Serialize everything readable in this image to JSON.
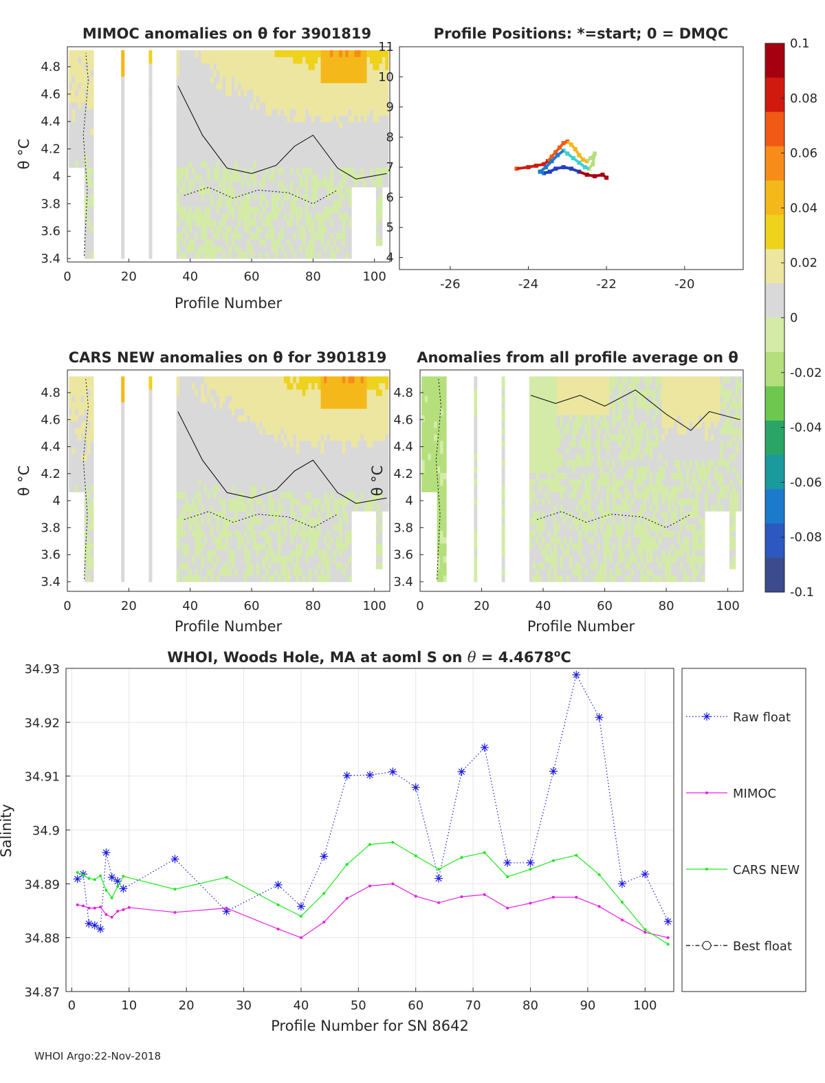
{
  "chart_data": [
    {
      "type": "heatmap",
      "id": "mimoc",
      "title": "MIMOC anomalies on θ  for 3901819",
      "xlabel": "Profile Number",
      "ylabel": "θ °C",
      "xlim": [
        0,
        105
      ],
      "ylim": [
        3.35,
        4.95
      ],
      "xticks": [
        "0",
        "20",
        "40",
        "60",
        "80",
        "100"
      ],
      "yticks": [
        "3.4",
        "3.6",
        "3.8",
        "4",
        "4.2",
        "4.4",
        "4.6",
        "4.8"
      ]
    },
    {
      "type": "scatter",
      "id": "positions",
      "title": "Profile Positions: *=start; 0 = DMQC",
      "xlim": [
        -27.3,
        -18.5
      ],
      "ylim": [
        3.6,
        11
      ],
      "xticks": [
        "-26",
        "-24",
        "-22",
        "-20"
      ],
      "yticks": [
        "4",
        "5",
        "6",
        "7",
        "8",
        "9",
        "10",
        "11"
      ],
      "track_lon": [
        -24.3,
        -24.0,
        -23.8,
        -23.6,
        -23.5,
        -23.4,
        -23.3,
        -23.2,
        -23.1,
        -23.0,
        -22.9,
        -22.8,
        -22.7,
        -22.6,
        -22.5,
        -22.4,
        -22.3,
        -22.35,
        -22.45,
        -22.55,
        -22.7,
        -22.85,
        -23.0,
        -23.1,
        -23.25,
        -23.4,
        -23.55,
        -23.7,
        -23.6,
        -23.45,
        -23.3,
        -23.1,
        -22.9,
        -22.7,
        -22.5,
        -22.3,
        -22.1,
        -22.0
      ],
      "track_lat": [
        6.95,
        7.0,
        7.05,
        7.1,
        7.2,
        7.35,
        7.5,
        7.65,
        7.8,
        7.85,
        7.75,
        7.6,
        7.4,
        7.25,
        7.2,
        7.3,
        7.45,
        7.1,
        6.95,
        7.0,
        7.15,
        7.3,
        7.45,
        7.55,
        7.4,
        7.2,
        7.0,
        6.85,
        6.8,
        6.85,
        6.95,
        7.0,
        6.95,
        6.85,
        6.75,
        6.7,
        6.75,
        6.65
      ]
    },
    {
      "type": "heatmap",
      "id": "cars",
      "title": "CARS NEW anomalies on θ for 3901819",
      "xlabel": "Profile Number",
      "ylabel": "θ °C",
      "xlim": [
        0,
        105
      ],
      "ylim": [
        3.35,
        4.95
      ],
      "xticks": [
        "0",
        "20",
        "40",
        "60",
        "80",
        "100"
      ],
      "yticks": [
        "3.4",
        "3.6",
        "3.8",
        "4",
        "4.2",
        "4.4",
        "4.6",
        "4.8"
      ]
    },
    {
      "type": "heatmap",
      "id": "avg",
      "title": "Anomalies from all profile average on θ",
      "xlabel": "Profile Number",
      "ylabel": "θ °C",
      "xlim": [
        0,
        105
      ],
      "ylim": [
        3.35,
        4.95
      ],
      "xticks": [
        "0",
        "20",
        "40",
        "60",
        "80",
        "100"
      ],
      "yticks": [
        "3.4",
        "3.6",
        "3.8",
        "4",
        "4.2",
        "4.4",
        "4.6",
        "4.8"
      ]
    },
    {
      "type": "colorbar",
      "range": [
        -0.1,
        0.1
      ],
      "ticks": [
        "0.1",
        "0.08",
        "0.06",
        "0.04",
        "0.02",
        "0",
        "-0.02",
        "-0.04",
        "-0.06",
        "-0.08",
        "-0.1"
      ],
      "colors": [
        "#a50010",
        "#d01a10",
        "#f05a14",
        "#f88c18",
        "#f4b81a",
        "#eed21c",
        "#ece6a0",
        "#d9d9d9",
        "#d4eba8",
        "#b4df7c",
        "#6ec850",
        "#2aa566",
        "#1a9a9c",
        "#1c7acc",
        "#2c58c0",
        "#3c4a8e"
      ]
    },
    {
      "type": "line",
      "id": "salinity",
      "title": "WHOI, Woods Hole, MA at aoml S on θ = 4.4678°C",
      "xlabel": "Profile Number for SN 8642",
      "ylabel": "Salinity",
      "xlim": [
        -1,
        105
      ],
      "ylim": [
        34.87,
        34.93
      ],
      "grid": true,
      "legend_position": "right-outside",
      "xticks": [
        "0",
        "10",
        "20",
        "30",
        "40",
        "50",
        "60",
        "70",
        "80",
        "90",
        "100"
      ],
      "yticks": [
        "34.93",
        "34.92",
        "34.91",
        "34.9",
        "34.89",
        "34.88",
        "34.87"
      ],
      "series": [
        {
          "name": "Raw float",
          "color": "#1a1adf",
          "x": [
            1,
            2,
            3,
            4,
            5,
            6,
            7,
            8,
            9,
            18,
            27,
            36,
            40,
            44,
            48,
            52,
            56,
            60,
            64,
            68,
            72,
            76,
            80,
            84,
            88,
            92,
            96,
            100,
            104
          ],
          "values": [
            34.8909,
            34.8918,
            34.8826,
            34.8823,
            34.8816,
            34.8958,
            34.8912,
            34.8905,
            34.8891,
            34.8946,
            34.8849,
            34.8898,
            34.8858,
            34.8951,
            34.9101,
            34.9102,
            34.9108,
            34.9079,
            34.891,
            34.9108,
            34.9153,
            34.8939,
            34.8939,
            34.9109,
            34.9288,
            34.9209,
            34.89,
            34.8918,
            34.883
          ]
        },
        {
          "name": "MIMOC",
          "color": "#e81ee8",
          "x": [
            1,
            2,
            3,
            4,
            5,
            6,
            7,
            8,
            9,
            10,
            18,
            27,
            36,
            40,
            44,
            48,
            52,
            56,
            60,
            64,
            68,
            72,
            76,
            80,
            84,
            88,
            92,
            96,
            100,
            104
          ],
          "values": [
            34.8861,
            34.8859,
            34.8855,
            34.8855,
            34.8857,
            34.8843,
            34.8838,
            34.8849,
            34.8852,
            34.8856,
            34.8847,
            34.8855,
            34.8816,
            34.88,
            34.8829,
            34.8873,
            34.8896,
            34.89,
            34.8877,
            34.8865,
            34.8876,
            34.888,
            34.8855,
            34.8864,
            34.8875,
            34.8875,
            34.8858,
            34.8833,
            34.881,
            34.88
          ]
        },
        {
          "name": "CARS NEW",
          "color": "#1ee81e",
          "x": [
            1,
            2,
            3,
            4,
            5,
            6,
            7,
            8,
            9,
            18,
            27,
            36,
            40,
            44,
            48,
            52,
            56,
            60,
            64,
            68,
            72,
            76,
            80,
            84,
            88,
            92,
            96,
            100,
            104
          ],
          "values": [
            34.8921,
            34.8916,
            34.891,
            34.8908,
            34.8915,
            34.8888,
            34.8874,
            34.8895,
            34.8914,
            34.889,
            34.8912,
            34.8861,
            34.884,
            34.8882,
            34.8936,
            34.8973,
            34.8977,
            34.8952,
            34.8927,
            34.8949,
            34.8958,
            34.8913,
            34.8927,
            34.8943,
            34.8953,
            34.8917,
            34.8866,
            34.8815,
            34.8788
          ]
        },
        {
          "name": "Best float",
          "color": "#000000",
          "x": [],
          "values": []
        }
      ]
    }
  ],
  "footer": "WHOI Argo:22-Nov-2018"
}
